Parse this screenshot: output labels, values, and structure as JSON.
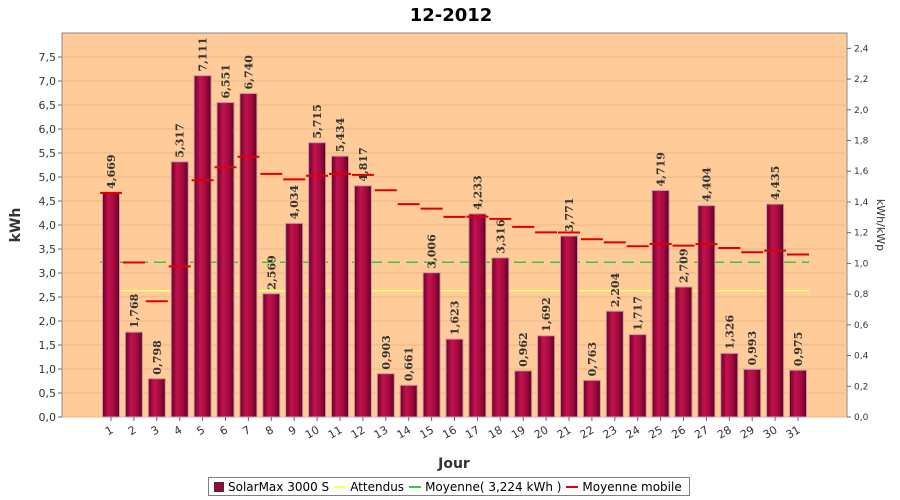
{
  "chart_data": {
    "type": "bar",
    "title": "12-2012",
    "xlabel": "Jour",
    "ylabel": "kWh",
    "y2label": "kWh/kWp",
    "ylim": [
      0,
      8.0
    ],
    "y2lim": [
      0,
      2.5
    ],
    "yticks": [
      "0,0",
      "0,5",
      "1,0",
      "1,5",
      "2,0",
      "2,5",
      "3,0",
      "3,5",
      "4,0",
      "4,5",
      "5,0",
      "5,5",
      "6,0",
      "6,5",
      "7,0",
      "7,5"
    ],
    "y2ticks": [
      "0,0",
      "0,2",
      "0,4",
      "0,6",
      "0,8",
      "1,0",
      "1,2",
      "1,4",
      "1,6",
      "1,8",
      "2,0",
      "2,2",
      "2,4"
    ],
    "categories": [
      "1",
      "2",
      "3",
      "4",
      "5",
      "6",
      "7",
      "8",
      "9",
      "10",
      "11",
      "12",
      "13",
      "14",
      "15",
      "16",
      "17",
      "18",
      "19",
      "20",
      "21",
      "22",
      "23",
      "24",
      "25",
      "26",
      "27",
      "28",
      "29",
      "30",
      "31"
    ],
    "series": [
      {
        "name": "SolarMax 3000 S",
        "kind": "bar",
        "values": [
          4.669,
          1.768,
          0.798,
          5.317,
          7.111,
          6.551,
          6.74,
          2.569,
          4.034,
          5.715,
          5.434,
          4.817,
          0.903,
          0.661,
          3.006,
          1.623,
          4.233,
          3.316,
          0.962,
          1.692,
          3.771,
          0.763,
          2.204,
          1.717,
          4.719,
          2.709,
          4.404,
          1.326,
          0.993,
          4.435,
          0.975
        ],
        "labels": [
          "4,669",
          "1,768",
          "0,798",
          "5,317",
          "7,111",
          "6,551",
          "6,740",
          "2,569",
          "4,034",
          "5,715",
          "5,434",
          "4,817",
          "0,903",
          "0,661",
          "3,006",
          "1,623",
          "4,233",
          "3,316",
          "0,962",
          "1,692",
          "3,771",
          "0,763",
          "2,204",
          "1,717",
          "4,719",
          "2,709",
          "4,404",
          "1,326",
          "0,993",
          "4,435",
          "0,975"
        ]
      },
      {
        "name": "Attendus",
        "kind": "line",
        "value": 2.63
      },
      {
        "name": "Moyenne( 3,224 kWh )",
        "kind": "line",
        "value": 3.224
      },
      {
        "name": "Moyenne mobile",
        "kind": "segments",
        "values": [
          4.669,
          3.219,
          2.412,
          3.138,
          4.933,
          5.203,
          5.423,
          5.066,
          4.951,
          5.027,
          5.064,
          5.043,
          4.725,
          4.435,
          4.34,
          4.17,
          4.174,
          4.127,
          3.96,
          3.847,
          3.843,
          3.703,
          3.638,
          3.558,
          3.604,
          3.57,
          3.601,
          3.52,
          3.433,
          3.466,
          3.385
        ]
      }
    ],
    "colors": {
      "bar": "#9b0a3c",
      "plot_bg": "#ffcc99",
      "attendus": "#ffff66",
      "moyenne": "#33cc33",
      "mobile": "#dd0000"
    },
    "legend_position": "bottom"
  },
  "legend": {
    "items": [
      "SolarMax 3000 S",
      "Attendus",
      "Moyenne( 3,224 kWh )",
      "Moyenne mobile"
    ]
  }
}
